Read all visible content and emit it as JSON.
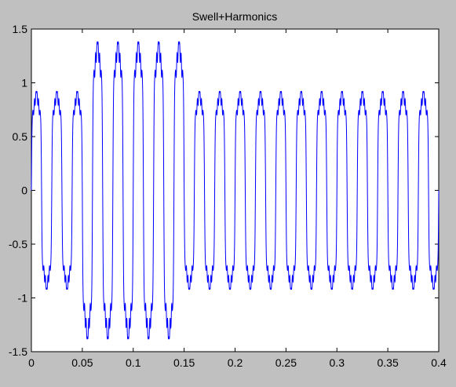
{
  "chart_data": {
    "type": "line",
    "title": "Swell+Harmonics",
    "xlabel": "",
    "ylabel": "",
    "xlim": [
      0,
      0.4
    ],
    "ylim": [
      -1.5,
      1.5
    ],
    "xticks": [
      "0",
      "0.05",
      "0.1",
      "0.15",
      "0.2",
      "0.25",
      "0.3",
      "0.35",
      "0.4"
    ],
    "yticks": [
      "1.5",
      "1",
      "0.5",
      "0",
      "-0.5",
      "-1",
      "-1.5"
    ],
    "grid": false,
    "series": [
      {
        "fundamental_hz": 50,
        "harmonics": [
          {
            "order": 1,
            "amplitude": 0.7
          },
          {
            "order": 3,
            "amplitude": 0.15
          },
          {
            "order": 5,
            "amplitude": 0.1
          },
          {
            "order": 7,
            "amplitude": 0.05
          },
          {
            "order": 9,
            "amplitude": 0.04
          },
          {
            "order": 15,
            "amplitude": 0.02
          }
        ],
        "swell_interval": [
          0.05,
          0.15
        ],
        "swell_factor": 1.5,
        "peak_normal": 0.92,
        "peak_swell": 1.38,
        "color": "#0000ff"
      }
    ]
  }
}
